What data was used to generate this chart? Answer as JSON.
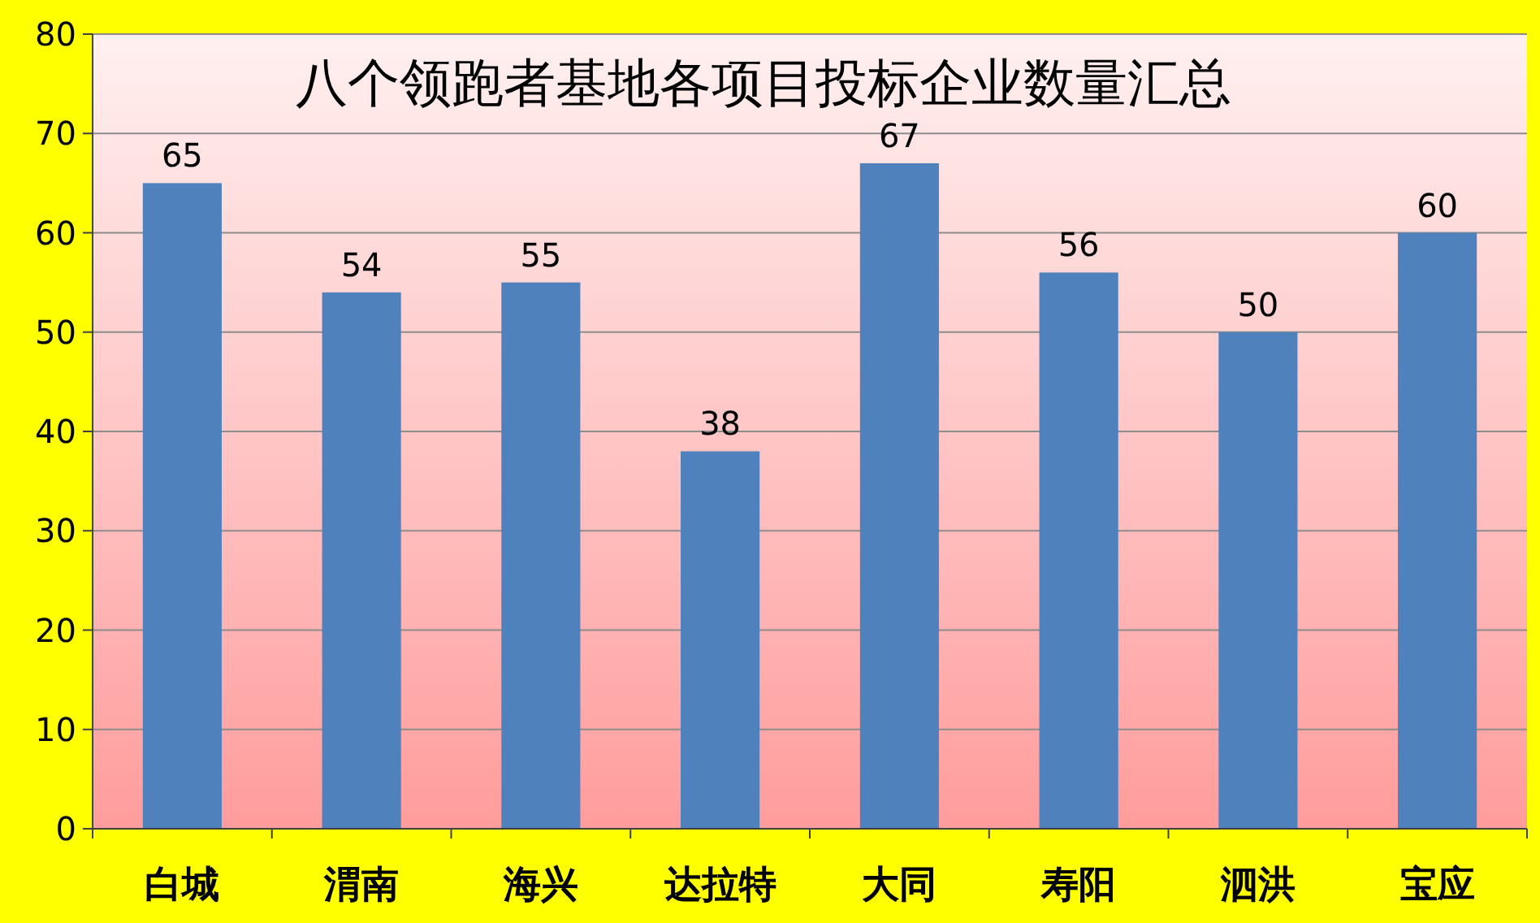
{
  "chart_data": {
    "type": "bar",
    "title": "八个领跑者基地各项目投标企业数量汇总",
    "categories": [
      "白城",
      "渭南",
      "海兴",
      "达拉特",
      "大同",
      "寿阳",
      "泗洪",
      "宝应"
    ],
    "values": [
      65,
      54,
      55,
      38,
      67,
      56,
      50,
      60
    ],
    "color": "#4f81bd",
    "data_labels": true,
    "grid": "y",
    "ylim": [
      0,
      80
    ],
    "yticks": [
      0,
      10,
      20,
      30,
      40,
      50,
      60,
      70,
      80
    ]
  }
}
